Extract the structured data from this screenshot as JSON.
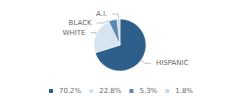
{
  "chart_data": {
    "type": "pie",
    "categories": [
      "HISPANIC",
      "WHITE",
      "BLACK",
      "A.I."
    ],
    "values": [
      70.2,
      22.8,
      5.3,
      1.8
    ],
    "value_labels": [
      "70.2%",
      "22.8%",
      "5.3%",
      "1.8%"
    ],
    "colors": [
      "#2d5f8a",
      "#d6e4f0",
      "#5a8ab0",
      "#c5d9e8"
    ],
    "legend": "bottom"
  }
}
